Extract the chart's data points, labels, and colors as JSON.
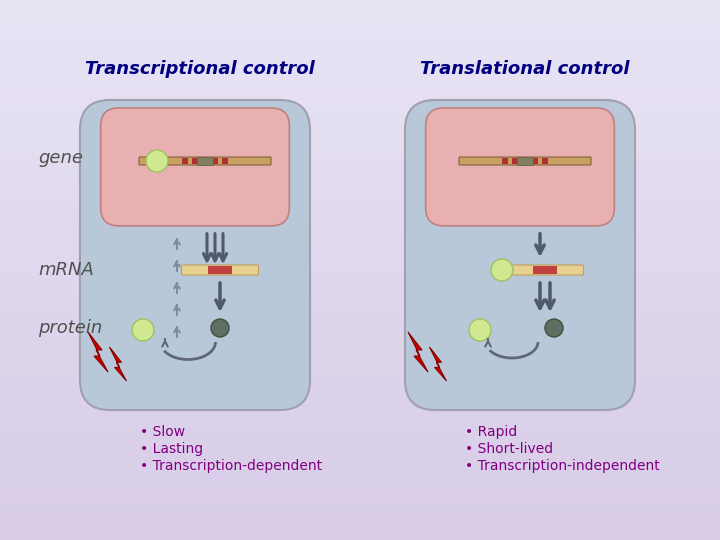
{
  "title_left": "Transcriptional control",
  "title_right": "Translational control",
  "label_gene": "gene",
  "label_mrna": "mRNA",
  "label_protein": "protein",
  "bullets_left": [
    "• Slow",
    "• Lasting",
    "• Transcription-dependent"
  ],
  "bullets_right": [
    "• Rapid",
    "• Short-lived",
    "• Transcription-independent"
  ],
  "bg_gradient_top": "#c8b8e8",
  "bg_gradient_bottom": "#e8e0f8",
  "cell_bg": "#b8c8d8",
  "nucleus_bg": "#e8b0b0",
  "mrna_bar_color": "#e8d090",
  "mrna_bar_accent": "#c04040",
  "gene_bar_color": "#c8a060",
  "gene_bar_accent": "#c04040",
  "title_color": "#000080",
  "label_color": "#505050",
  "bullet_color": "#800080",
  "arrow_color": "#505870",
  "ribosome_color": "#d0e8a0",
  "protein_light_color": "#d0e8a0",
  "protein_dark_color": "#607060",
  "flash_red": "#cc0000"
}
